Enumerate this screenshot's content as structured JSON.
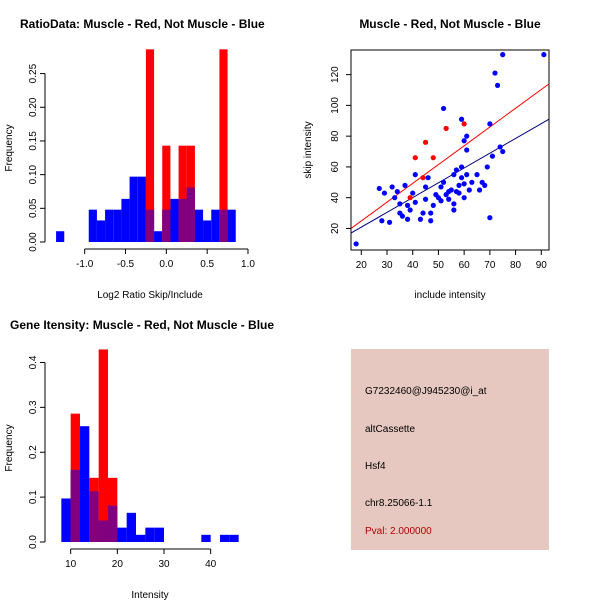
{
  "colors": {
    "red": "#ff0000",
    "blue": "#0000ff",
    "overlap": "#800080",
    "red_line": "#ff0000",
    "blue_line": "#000080",
    "panel_bg": "#e6c8c0",
    "pval": "#b30000"
  },
  "chart_data": [
    {
      "id": "ratio_hist",
      "type": "bar",
      "title": "RatioData: Muscle - Red, Not Muscle - Blue",
      "xlabel": "Log2 Ratio Skip/Include",
      "ylabel": "Frequency",
      "xlim": [
        -1.4,
        1.0
      ],
      "ylim": [
        0,
        0.285
      ],
      "xticks": [
        -1.0,
        -0.5,
        0.0,
        0.5,
        1.0
      ],
      "xtick_labels": [
        "-1.0",
        "-0.5",
        "0.0",
        "0.5",
        "1.0"
      ],
      "yticks": [
        0.0,
        0.05,
        0.1,
        0.15,
        0.2,
        0.25
      ],
      "ytick_labels": [
        "0.00",
        "0.05",
        "0.10",
        "0.15",
        "0.20",
        "0.25"
      ],
      "bin_starts": [
        -1.35,
        -1.25,
        -1.15,
        -1.05,
        -0.95,
        -0.85,
        -0.75,
        -0.65,
        -0.55,
        -0.45,
        -0.35,
        -0.25,
        -0.15,
        -0.05,
        0.05,
        0.15,
        0.25,
        0.35,
        0.45,
        0.55,
        0.65,
        0.75
      ],
      "bin_width": 0.1,
      "series": [
        {
          "name": "Not Muscle",
          "color": "blue",
          "values": [
            0.016,
            0,
            0,
            0,
            0.048,
            0.032,
            0.048,
            0.048,
            0.064,
            0.097,
            0.097,
            0.048,
            0.016,
            0.048,
            0.064,
            0.064,
            0.081,
            0.048,
            0.032,
            0.048,
            0.048,
            0.048
          ]
        },
        {
          "name": "Muscle",
          "color": "red",
          "values": [
            0,
            0,
            0,
            0,
            0,
            0,
            0,
            0,
            0,
            0,
            0,
            0.286,
            0,
            0.143,
            0,
            0.143,
            0.143,
            0,
            0,
            0,
            0.286,
            0
          ]
        }
      ]
    },
    {
      "id": "scatter",
      "type": "scatter",
      "title": "Muscle - Red, Not Muscle - Blue",
      "xlabel": "include intensity",
      "ylabel": "skip intensity",
      "xlim": [
        16,
        93
      ],
      "ylim": [
        6,
        136
      ],
      "xticks": [
        20,
        30,
        40,
        50,
        60,
        70,
        80,
        90
      ],
      "yticks": [
        20,
        40,
        60,
        80,
        100,
        120
      ],
      "series": [
        {
          "name": "Not Muscle",
          "color": "blue",
          "points": [
            [
              18,
              10
            ],
            [
              27,
              46
            ],
            [
              28,
              25
            ],
            [
              29,
              43
            ],
            [
              31,
              24
            ],
            [
              32,
              47
            ],
            [
              33,
              40
            ],
            [
              34,
              44
            ],
            [
              35,
              30
            ],
            [
              35,
              36
            ],
            [
              36,
              28
            ],
            [
              37,
              48
            ],
            [
              38,
              26
            ],
            [
              38,
              35
            ],
            [
              39,
              32
            ],
            [
              40,
              43
            ],
            [
              41,
              37
            ],
            [
              41,
              55
            ],
            [
              43,
              26
            ],
            [
              44,
              30
            ],
            [
              45,
              39
            ],
            [
              45,
              47
            ],
            [
              46,
              53
            ],
            [
              47,
              25
            ],
            [
              47,
              30
            ],
            [
              48,
              35
            ],
            [
              49,
              42
            ],
            [
              50,
              40
            ],
            [
              51,
              47
            ],
            [
              51,
              38
            ],
            [
              52,
              98
            ],
            [
              52,
              50
            ],
            [
              53,
              42
            ],
            [
              54,
              44
            ],
            [
              54,
              39
            ],
            [
              55,
              45
            ],
            [
              56,
              32
            ],
            [
              56,
              36
            ],
            [
              56,
              55
            ],
            [
              57,
              44
            ],
            [
              57,
              58
            ],
            [
              58,
              48
            ],
            [
              58,
              43
            ],
            [
              59,
              60
            ],
            [
              59,
              91
            ],
            [
              59,
              53
            ],
            [
              60,
              77
            ],
            [
              60,
              49
            ],
            [
              60,
              40
            ],
            [
              61,
              80
            ],
            [
              61,
              71
            ],
            [
              61,
              55
            ],
            [
              62,
              45
            ],
            [
              63,
              50
            ],
            [
              65,
              55
            ],
            [
              66,
              45
            ],
            [
              67,
              50
            ],
            [
              68,
              48
            ],
            [
              69,
              60
            ],
            [
              70,
              88
            ],
            [
              70,
              27
            ],
            [
              71,
              67
            ],
            [
              72,
              121
            ],
            [
              73,
              113
            ],
            [
              74,
              73
            ],
            [
              75,
              133
            ],
            [
              75,
              70
            ],
            [
              91,
              133
            ]
          ]
        },
        {
          "name": "Muscle",
          "color": "red",
          "points": [
            [
              39,
              40
            ],
            [
              41,
              66
            ],
            [
              44,
              53
            ],
            [
              45,
              76
            ],
            [
              48,
              66
            ],
            [
              53,
              85
            ],
            [
              60,
              88
            ]
          ]
        }
      ],
      "fit_lines": [
        {
          "name": "Muscle fit",
          "color": "red_line",
          "from": [
            16,
            20
          ],
          "to": [
            93,
            114
          ]
        },
        {
          "name": "Not Muscle fit",
          "color": "blue_line",
          "from": [
            16,
            17
          ],
          "to": [
            93,
            91
          ]
        }
      ]
    },
    {
      "id": "intensity_hist",
      "type": "bar",
      "title": "Gene Itensity: Muscle - Red, Not Muscle - Blue",
      "xlabel": "Intensity",
      "ylabel": "Frequency",
      "xlim": [
        6,
        48
      ],
      "ylim": [
        0,
        0.43
      ],
      "xticks": [
        10,
        20,
        30,
        40
      ],
      "yticks": [
        0.0,
        0.1,
        0.2,
        0.3,
        0.4
      ],
      "ytick_labels": [
        "0.0",
        "0.1",
        "0.2",
        "0.3",
        "0.4"
      ],
      "bin_starts": [
        8,
        10,
        12,
        14,
        16,
        18,
        20,
        22,
        24,
        26,
        28,
        30,
        32,
        34,
        36,
        38,
        40,
        42,
        44
      ],
      "bin_width": 2,
      "series": [
        {
          "name": "Not Muscle",
          "color": "blue",
          "values": [
            0.097,
            0.161,
            0.258,
            0.113,
            0.048,
            0.081,
            0.032,
            0.065,
            0.016,
            0.032,
            0.032,
            0,
            0,
            0,
            0,
            0.016,
            0,
            0.016,
            0.016
          ]
        },
        {
          "name": "Muscle",
          "color": "red",
          "values": [
            0,
            0.286,
            0,
            0.143,
            0.429,
            0.143,
            0,
            0,
            0,
            0,
            0,
            0,
            0,
            0,
            0,
            0,
            0,
            0,
            0
          ]
        }
      ]
    }
  ],
  "info_panel": {
    "probe_id": "G7232460@J945230@i_at",
    "event_type": "altCassette",
    "gene": "Hsf4",
    "location": "chr8.25066-1.1",
    "pval": "Pval: 2.000000"
  }
}
